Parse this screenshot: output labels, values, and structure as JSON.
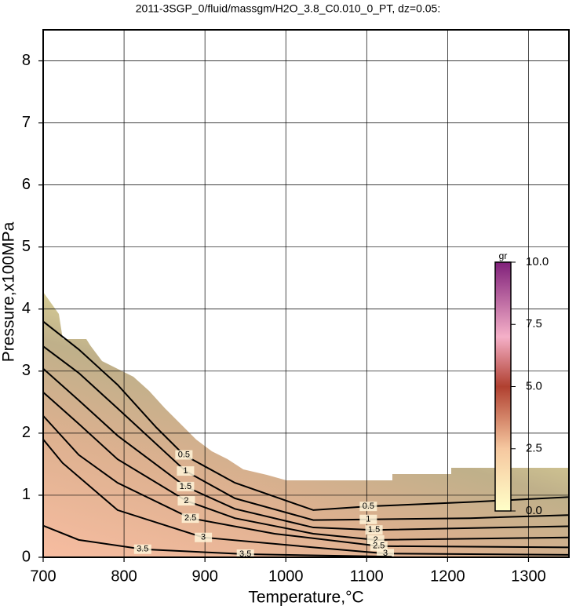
{
  "chart_data": {
    "type": "contour",
    "title": "2011-3SGP_0/fluid/massgm/H2O_3.8_C0.010_0_PT, dz=0.05:",
    "x_label": "Temperature,°C",
    "y_label": "Pressure,x100MPa",
    "xlim": [
      700,
      1350
    ],
    "xticks": [
      700,
      800,
      900,
      1000,
      1100,
      1200,
      1300
    ],
    "ylim": [
      0,
      8.5
    ],
    "yticks": [
      0,
      1,
      2,
      3,
      4,
      5,
      6,
      7,
      8
    ],
    "grid": true,
    "series": [
      {
        "name": "0.5",
        "color": "#000000",
        "x": [
          700,
          744,
          792,
          840,
          874,
          937,
          1034,
          1102,
          1228,
          1349
        ],
        "values": [
          3.8,
          3.35,
          2.78,
          2.09,
          1.65,
          1.2,
          0.76,
          0.82,
          0.89,
          0.97
        ]
      },
      {
        "name": "1",
        "color": "#000000",
        "x": [
          700,
          744,
          792,
          876,
          937,
          1034,
          1102,
          1228,
          1349
        ],
        "values": [
          3.4,
          2.97,
          2.4,
          1.39,
          0.95,
          0.6,
          0.61,
          0.63,
          0.68
        ]
      },
      {
        "name": "1.5",
        "color": "#000000",
        "x": [
          700,
          744,
          792,
          876,
          937,
          1034,
          1109,
          1349
        ],
        "values": [
          3.04,
          2.53,
          1.96,
          1.14,
          0.78,
          0.48,
          0.44,
          0.5
        ]
      },
      {
        "name": "2",
        "color": "#000000",
        "x": [
          700,
          744,
          792,
          877,
          937,
          1034,
          1111,
          1349
        ],
        "values": [
          2.66,
          2.15,
          1.58,
          0.91,
          0.63,
          0.38,
          0.28,
          0.32
        ]
      },
      {
        "name": "2.5",
        "color": "#000000",
        "x": [
          700,
          744,
          792,
          882,
          986,
          1115,
          1349
        ],
        "values": [
          2.28,
          1.65,
          1.2,
          0.63,
          0.38,
          0.18,
          0.16
        ]
      },
      {
        "name": "3",
        "color": "#000000",
        "x": [
          700,
          724,
          792,
          898,
          1034,
          1123,
          1349
        ],
        "values": [
          1.9,
          1.52,
          0.76,
          0.32,
          0.16,
          0.06,
          0.04
        ]
      },
      {
        "name": "3.5",
        "color": "#000000",
        "x": [
          700,
          744,
          823,
          950,
          1131
        ],
        "values": [
          0.51,
          0.28,
          0.13,
          0.05,
          0.01
        ]
      }
    ],
    "colorbar": {
      "label": "gr",
      "lim": [
        0,
        10
      ],
      "ticks": [
        {
          "value": 0,
          "label": "0.0"
        },
        {
          "value": 2.5,
          "label": "2.5"
        },
        {
          "value": 5,
          "label": "5.0"
        },
        {
          "value": 7.5,
          "label": "7.5"
        },
        {
          "value": 10,
          "label": "10.0"
        }
      ]
    }
  }
}
